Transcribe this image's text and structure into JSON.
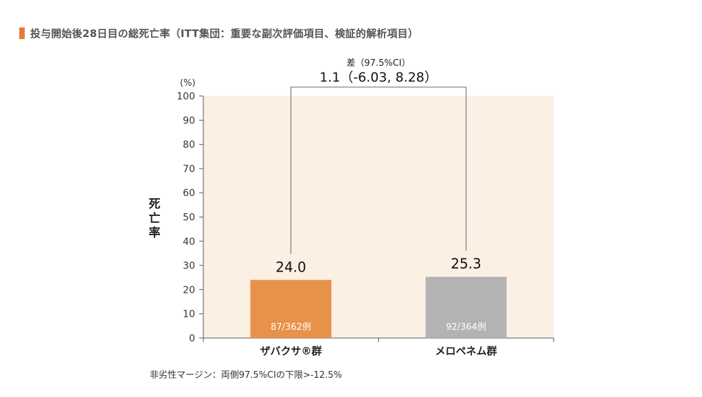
{
  "title": "投与開始後28日目の総死亡率（ITT集団：重要な副次評価項目、検証的解析項目）",
  "footnote": "非劣性マージン：両側97.5%CIの下限>-12.5%",
  "colors": {
    "accent": "#e8793a",
    "bar1": "#e8914a",
    "bar2": "#b3b3b3",
    "plot_bg": "#fcefe4"
  },
  "chart_data": {
    "type": "bar",
    "categories": [
      "ザバクサ®群",
      "メロペネム群"
    ],
    "values": [
      24.0,
      25.3
    ],
    "value_labels": [
      "24.0",
      "25.3"
    ],
    "bar_annotations": [
      "87/362例",
      "92/364例"
    ],
    "ylabel": "死亡率",
    "yunit": "(%)",
    "ylim": [
      0,
      100
    ],
    "yticks": [
      0,
      10,
      20,
      30,
      40,
      50,
      60,
      70,
      80,
      90,
      100
    ],
    "difference": {
      "label": "差（97.5%CI）",
      "value": "1.1（-6.03, 8.28）"
    }
  }
}
